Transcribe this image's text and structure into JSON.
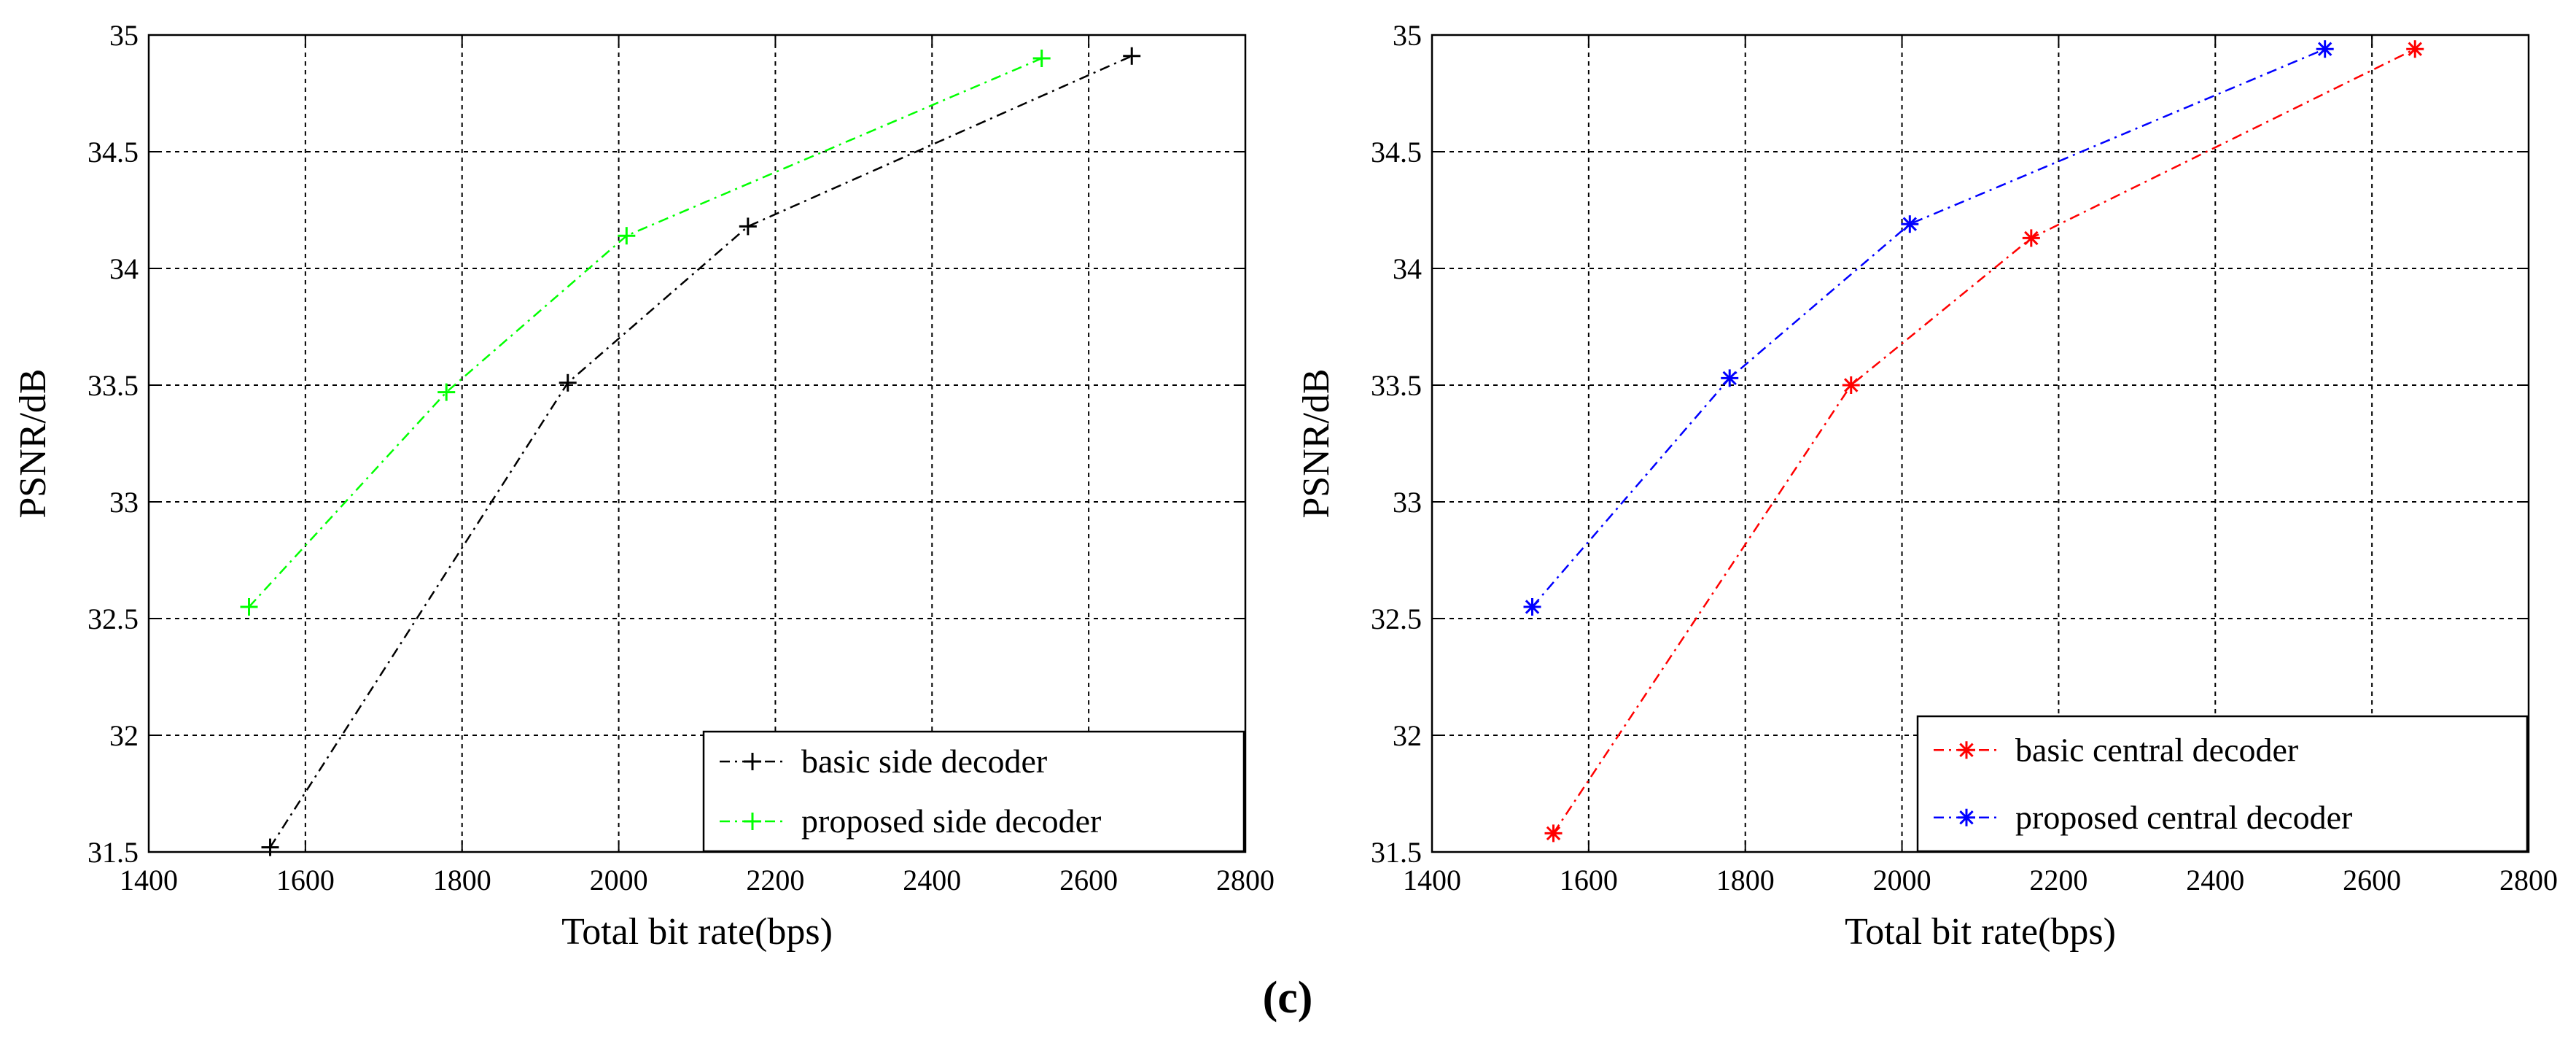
{
  "figure": {
    "caption": "(c)"
  },
  "chart_data": [
    {
      "type": "line",
      "xlabel": "Total bit rate(bps)",
      "ylabel": "PSNR/dB",
      "xlim": [
        1400,
        2800
      ],
      "ylim": [
        31.5,
        35
      ],
      "xticks": [
        1400,
        1600,
        1800,
        2000,
        2200,
        2400,
        2600,
        2800
      ],
      "yticks": [
        31.5,
        32,
        32.5,
        33,
        33.5,
        34,
        34.5,
        35
      ],
      "grid": true,
      "legend_position": "bottom-right",
      "series": [
        {
          "name": "basic side decoder",
          "color": "#000000",
          "marker": "+",
          "x": [
            1555,
            1935,
            2165,
            2655
          ],
          "y": [
            31.52,
            33.51,
            34.18,
            34.91
          ]
        },
        {
          "name": "proposed side decoder",
          "color": "#00ff00",
          "marker": "+",
          "x": [
            1528,
            1780,
            2010,
            2540
          ],
          "y": [
            32.55,
            33.47,
            34.14,
            34.9
          ]
        }
      ]
    },
    {
      "type": "line",
      "xlabel": "Total bit rate(bps)",
      "ylabel": "PSNR/dB",
      "xlim": [
        1400,
        2800
      ],
      "ylim": [
        31.5,
        35
      ],
      "xticks": [
        1400,
        1600,
        1800,
        2000,
        2200,
        2400,
        2600,
        2800
      ],
      "yticks": [
        31.5,
        32,
        32.5,
        33,
        33.5,
        34,
        34.5,
        35
      ],
      "grid": true,
      "legend_position": "bottom-right",
      "series": [
        {
          "name": "basic central decoder",
          "color": "#ff0000",
          "marker": "*",
          "x": [
            1555,
            1935,
            2165,
            2655
          ],
          "y": [
            31.58,
            33.5,
            34.13,
            34.94
          ]
        },
        {
          "name": "proposed central decoder",
          "color": "#0000ff",
          "marker": "*",
          "x": [
            1528,
            1780,
            2010,
            2540
          ],
          "y": [
            32.55,
            33.53,
            34.19,
            34.94
          ]
        }
      ]
    }
  ]
}
